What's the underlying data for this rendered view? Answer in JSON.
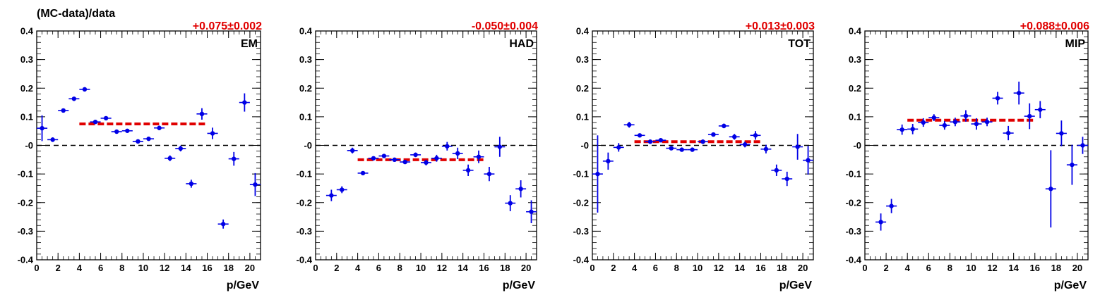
{
  "figure": {
    "ylabel": "(MC-data)/data",
    "xlabel": "p/GeV"
  },
  "colors": {
    "data_points": "#0000e6",
    "fit_line": "#e00000",
    "zero_line": "#000000",
    "fit_text": "#e00000"
  },
  "chart_data": [
    {
      "type": "scatter",
      "panel_label": "EM",
      "fit_label": "+0.075±0.002",
      "xlabel": "p/GeV",
      "ylabel": "(MC-data)/data",
      "xlim": [
        0,
        21
      ],
      "ylim": [
        -0.4,
        0.4
      ],
      "x_ticks": [
        0,
        2,
        4,
        6,
        8,
        10,
        12,
        14,
        16,
        18,
        20
      ],
      "y_ticks": [
        -0.4,
        -0.3,
        -0.2,
        -0.1,
        0,
        0.1,
        0.2,
        0.3,
        0.4
      ],
      "y_tick_labels": [
        "-0.4",
        "-0.3",
        "-0.2",
        "-0.1",
        "-0",
        "0.1",
        "0.2",
        "0.3",
        "0.4"
      ],
      "fit": {
        "value": 0.075,
        "x_range": [
          4,
          16
        ]
      },
      "series": [
        {
          "points": [
            {
              "x": 0.5,
              "y": 0.06,
              "yerr": 0.045
            },
            {
              "x": 1.5,
              "y": 0.02,
              "yerr": 0.008
            },
            {
              "x": 2.5,
              "y": 0.122,
              "yerr": 0.005
            },
            {
              "x": 3.5,
              "y": 0.163,
              "yerr": 0.005
            },
            {
              "x": 4.5,
              "y": 0.196,
              "yerr": 0.004
            },
            {
              "x": 5.5,
              "y": 0.082,
              "yerr": 0.005
            },
            {
              "x": 6.5,
              "y": 0.095,
              "yerr": 0.005
            },
            {
              "x": 7.5,
              "y": 0.048,
              "yerr": 0.005
            },
            {
              "x": 8.5,
              "y": 0.051,
              "yerr": 0.005
            },
            {
              "x": 9.5,
              "y": 0.014,
              "yerr": 0.006
            },
            {
              "x": 10.5,
              "y": 0.023,
              "yerr": 0.007
            },
            {
              "x": 11.5,
              "y": 0.061,
              "yerr": 0.008
            },
            {
              "x": 12.5,
              "y": -0.045,
              "yerr": 0.01
            },
            {
              "x": 13.5,
              "y": -0.011,
              "yerr": 0.01
            },
            {
              "x": 14.5,
              "y": -0.134,
              "yerr": 0.014
            },
            {
              "x": 15.5,
              "y": 0.11,
              "yerr": 0.02
            },
            {
              "x": 16.5,
              "y": 0.042,
              "yerr": 0.02
            },
            {
              "x": 17.5,
              "y": -0.275,
              "yerr": 0.016
            },
            {
              "x": 18.5,
              "y": -0.047,
              "yerr": 0.024
            },
            {
              "x": 19.5,
              "y": 0.15,
              "yerr": 0.032
            },
            {
              "x": 20.5,
              "y": -0.137,
              "yerr": 0.04
            }
          ]
        }
      ]
    },
    {
      "type": "scatter",
      "panel_label": "HAD",
      "fit_label": "-0.050±0.004",
      "xlabel": "p/GeV",
      "ylabel": "",
      "xlim": [
        0,
        21
      ],
      "ylim": [
        -0.4,
        0.4
      ],
      "x_ticks": [
        0,
        2,
        4,
        6,
        8,
        10,
        12,
        14,
        16,
        18,
        20
      ],
      "y_ticks": [
        -0.4,
        -0.3,
        -0.2,
        -0.1,
        0,
        0.1,
        0.2,
        0.3,
        0.4
      ],
      "y_tick_labels": [
        "-0.4",
        "-0.3",
        "-0.2",
        "-0.1",
        "-0",
        "0.1",
        "0.2",
        "0.3",
        "0.4"
      ],
      "fit": {
        "value": -0.05,
        "x_range": [
          4,
          16
        ]
      },
      "series": [
        {
          "points": [
            {
              "x": 1.5,
              "y": -0.175,
              "yerr": 0.02
            },
            {
              "x": 2.5,
              "y": -0.155,
              "yerr": 0.012
            },
            {
              "x": 3.5,
              "y": -0.018,
              "yerr": 0.01
            },
            {
              "x": 4.5,
              "y": -0.097,
              "yerr": 0.006
            },
            {
              "x": 5.5,
              "y": -0.045,
              "yerr": 0.006
            },
            {
              "x": 6.5,
              "y": -0.037,
              "yerr": 0.006
            },
            {
              "x": 7.5,
              "y": -0.05,
              "yerr": 0.006
            },
            {
              "x": 8.5,
              "y": -0.058,
              "yerr": 0.007
            },
            {
              "x": 9.5,
              "y": -0.033,
              "yerr": 0.008
            },
            {
              "x": 10.5,
              "y": -0.06,
              "yerr": 0.01
            },
            {
              "x": 11.5,
              "y": -0.045,
              "yerr": 0.012
            },
            {
              "x": 12.5,
              "y": -0.003,
              "yerr": 0.015
            },
            {
              "x": 13.5,
              "y": -0.028,
              "yerr": 0.02
            },
            {
              "x": 14.5,
              "y": -0.087,
              "yerr": 0.02
            },
            {
              "x": 15.5,
              "y": -0.04,
              "yerr": 0.022
            },
            {
              "x": 16.5,
              "y": -0.1,
              "yerr": 0.025
            },
            {
              "x": 17.5,
              "y": -0.005,
              "yerr": 0.035
            },
            {
              "x": 18.5,
              "y": -0.202,
              "yerr": 0.028
            },
            {
              "x": 19.5,
              "y": -0.152,
              "yerr": 0.03
            },
            {
              "x": 20.5,
              "y": -0.232,
              "yerr": 0.04
            }
          ]
        }
      ]
    },
    {
      "type": "scatter",
      "panel_label": "TOT",
      "fit_label": "+0.013±0.003",
      "xlabel": "p/GeV",
      "ylabel": "",
      "xlim": [
        0,
        21
      ],
      "ylim": [
        -0.4,
        0.4
      ],
      "x_ticks": [
        0,
        2,
        4,
        6,
        8,
        10,
        12,
        14,
        16,
        18,
        20
      ],
      "y_ticks": [
        -0.4,
        -0.3,
        -0.2,
        -0.1,
        0,
        0.1,
        0.2,
        0.3,
        0.4
      ],
      "y_tick_labels": [
        "-0.4",
        "-0.3",
        "-0.2",
        "-0.1",
        "-0",
        "0.1",
        "0.2",
        "0.3",
        "0.4"
      ],
      "fit": {
        "value": 0.013,
        "x_range": [
          4,
          16
        ]
      },
      "series": [
        {
          "points": [
            {
              "x": 0.5,
              "y": -0.1,
              "yerr": 0.135
            },
            {
              "x": 1.5,
              "y": -0.055,
              "yerr": 0.03
            },
            {
              "x": 2.5,
              "y": -0.007,
              "yerr": 0.015
            },
            {
              "x": 3.5,
              "y": 0.072,
              "yerr": 0.01
            },
            {
              "x": 4.5,
              "y": 0.035,
              "yerr": 0.006
            },
            {
              "x": 5.5,
              "y": 0.013,
              "yerr": 0.005
            },
            {
              "x": 6.5,
              "y": 0.018,
              "yerr": 0.005
            },
            {
              "x": 7.5,
              "y": -0.01,
              "yerr": 0.005
            },
            {
              "x": 8.5,
              "y": -0.015,
              "yerr": 0.005
            },
            {
              "x": 9.5,
              "y": -0.015,
              "yerr": 0.006
            },
            {
              "x": 10.5,
              "y": 0.013,
              "yerr": 0.007
            },
            {
              "x": 11.5,
              "y": 0.038,
              "yerr": 0.007
            },
            {
              "x": 12.5,
              "y": 0.068,
              "yerr": 0.008
            },
            {
              "x": 13.5,
              "y": 0.03,
              "yerr": 0.01
            },
            {
              "x": 14.5,
              "y": 0.003,
              "yerr": 0.01
            },
            {
              "x": 15.5,
              "y": 0.035,
              "yerr": 0.015
            },
            {
              "x": 16.5,
              "y": -0.013,
              "yerr": 0.015
            },
            {
              "x": 17.5,
              "y": -0.087,
              "yerr": 0.02
            },
            {
              "x": 18.5,
              "y": -0.117,
              "yerr": 0.025
            },
            {
              "x": 19.5,
              "y": -0.005,
              "yerr": 0.045
            },
            {
              "x": 20.5,
              "y": -0.052,
              "yerr": 0.05
            }
          ]
        }
      ]
    },
    {
      "type": "scatter",
      "panel_label": "MIP",
      "fit_label": "+0.088±0.006",
      "xlabel": "p/GeV",
      "ylabel": "",
      "xlim": [
        0,
        21
      ],
      "ylim": [
        -0.4,
        0.4
      ],
      "x_ticks": [
        0,
        2,
        4,
        6,
        8,
        10,
        12,
        14,
        16,
        18,
        20
      ],
      "y_ticks": [
        -0.4,
        -0.3,
        -0.2,
        -0.1,
        0,
        0.1,
        0.2,
        0.3,
        0.4
      ],
      "y_tick_labels": [
        "-0.4",
        "-0.3",
        "-0.2",
        "-0.1",
        "-0",
        "0.1",
        "0.2",
        "0.3",
        "0.4"
      ],
      "fit": {
        "value": 0.088,
        "x_range": [
          4,
          16
        ]
      },
      "series": [
        {
          "points": [
            {
              "x": 1.5,
              "y": -0.268,
              "yerr": 0.03
            },
            {
              "x": 2.5,
              "y": -0.212,
              "yerr": 0.025
            },
            {
              "x": 3.5,
              "y": 0.055,
              "yerr": 0.018
            },
            {
              "x": 4.5,
              "y": 0.057,
              "yerr": 0.018
            },
            {
              "x": 5.5,
              "y": 0.08,
              "yerr": 0.015
            },
            {
              "x": 6.5,
              "y": 0.097,
              "yerr": 0.012
            },
            {
              "x": 7.5,
              "y": 0.07,
              "yerr": 0.015
            },
            {
              "x": 8.5,
              "y": 0.082,
              "yerr": 0.015
            },
            {
              "x": 9.5,
              "y": 0.103,
              "yerr": 0.02
            },
            {
              "x": 10.5,
              "y": 0.075,
              "yerr": 0.02
            },
            {
              "x": 11.5,
              "y": 0.082,
              "yerr": 0.015
            },
            {
              "x": 12.5,
              "y": 0.165,
              "yerr": 0.022
            },
            {
              "x": 13.5,
              "y": 0.043,
              "yerr": 0.025
            },
            {
              "x": 14.5,
              "y": 0.183,
              "yerr": 0.04
            },
            {
              "x": 15.5,
              "y": 0.102,
              "yerr": 0.045
            },
            {
              "x": 16.5,
              "y": 0.125,
              "yerr": 0.03
            },
            {
              "x": 17.5,
              "y": -0.152,
              "yerr": 0.135
            },
            {
              "x": 18.5,
              "y": 0.042,
              "yerr": 0.045
            },
            {
              "x": 19.5,
              "y": -0.068,
              "yerr": 0.07
            },
            {
              "x": 20.5,
              "y": 0.0,
              "yerr": 0.03
            }
          ]
        }
      ]
    }
  ]
}
